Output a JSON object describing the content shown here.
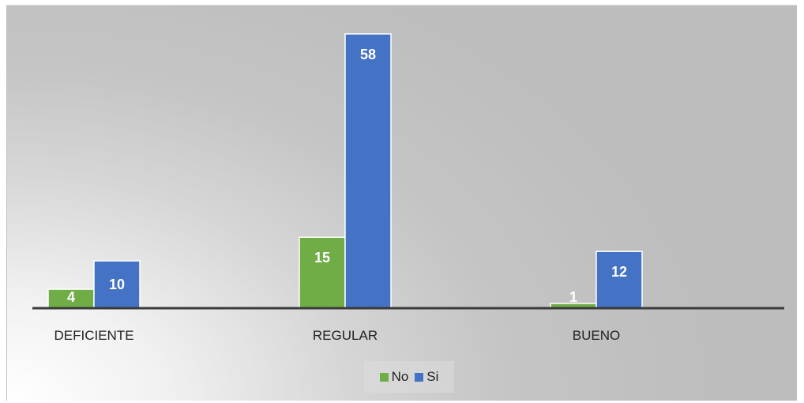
{
  "chart_data": {
    "type": "bar",
    "categories": [
      "DEFICIENTE",
      "REGULAR",
      "BUENO"
    ],
    "series": [
      {
        "name": "No",
        "values": [
          4,
          15,
          1
        ],
        "labels": [
          "4",
          "15",
          "1"
        ],
        "color": "#70ad47"
      },
      {
        "name": "Si",
        "values": [
          10,
          58,
          12
        ],
        "labels": [
          "10",
          "58",
          "12"
        ],
        "color": "#4472c4"
      }
    ],
    "ylim": [
      0,
      62
    ],
    "grid": false,
    "legend_position": "bottom"
  }
}
